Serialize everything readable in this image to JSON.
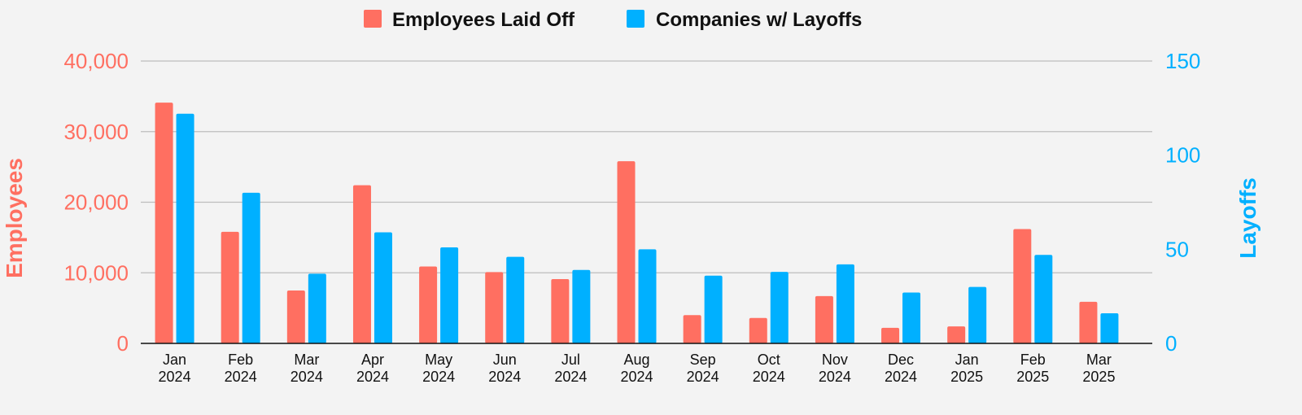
{
  "colors": {
    "employees": "#ff6f61",
    "companies": "#00b0ff",
    "grid": "#bdbdbd",
    "axis": "#111111",
    "background": "#f3f3f3"
  },
  "chart_data": {
    "type": "bar",
    "title": "",
    "xlabel": "",
    "ylabel": "Employees",
    "y2label": "Layoffs",
    "ylim": [
      0,
      40000
    ],
    "y2lim": [
      0,
      150
    ],
    "yticks": [
      "0",
      "10,000",
      "20,000",
      "30,000",
      "40,000"
    ],
    "y2ticks": [
      "0",
      "50",
      "100",
      "150"
    ],
    "grid": true,
    "legend": "top-center",
    "categories": [
      [
        "Jan",
        "2024"
      ],
      [
        "Feb",
        "2024"
      ],
      [
        "Mar",
        "2024"
      ],
      [
        "Apr",
        "2024"
      ],
      [
        "May",
        "2024"
      ],
      [
        "Jun",
        "2024"
      ],
      [
        "Jul",
        "2024"
      ],
      [
        "Aug",
        "2024"
      ],
      [
        "Sep",
        "2024"
      ],
      [
        "Oct",
        "2024"
      ],
      [
        "Nov",
        "2024"
      ],
      [
        "Dec",
        "2024"
      ],
      [
        "Jan",
        "2025"
      ],
      [
        "Feb",
        "2025"
      ],
      [
        "Mar",
        "2025"
      ]
    ],
    "series": [
      {
        "name": "Employees Laid Off",
        "axis": "left",
        "values": [
          34100,
          15800,
          7500,
          22400,
          10900,
          10100,
          9100,
          25800,
          4000,
          3600,
          6700,
          2200,
          2400,
          16200,
          5900
        ]
      },
      {
        "name": "Companies w/ Layoffs",
        "axis": "right",
        "values": [
          122,
          80,
          37,
          59,
          51,
          46,
          39,
          50,
          36,
          38,
          42,
          27,
          30,
          47,
          16
        ]
      }
    ]
  }
}
